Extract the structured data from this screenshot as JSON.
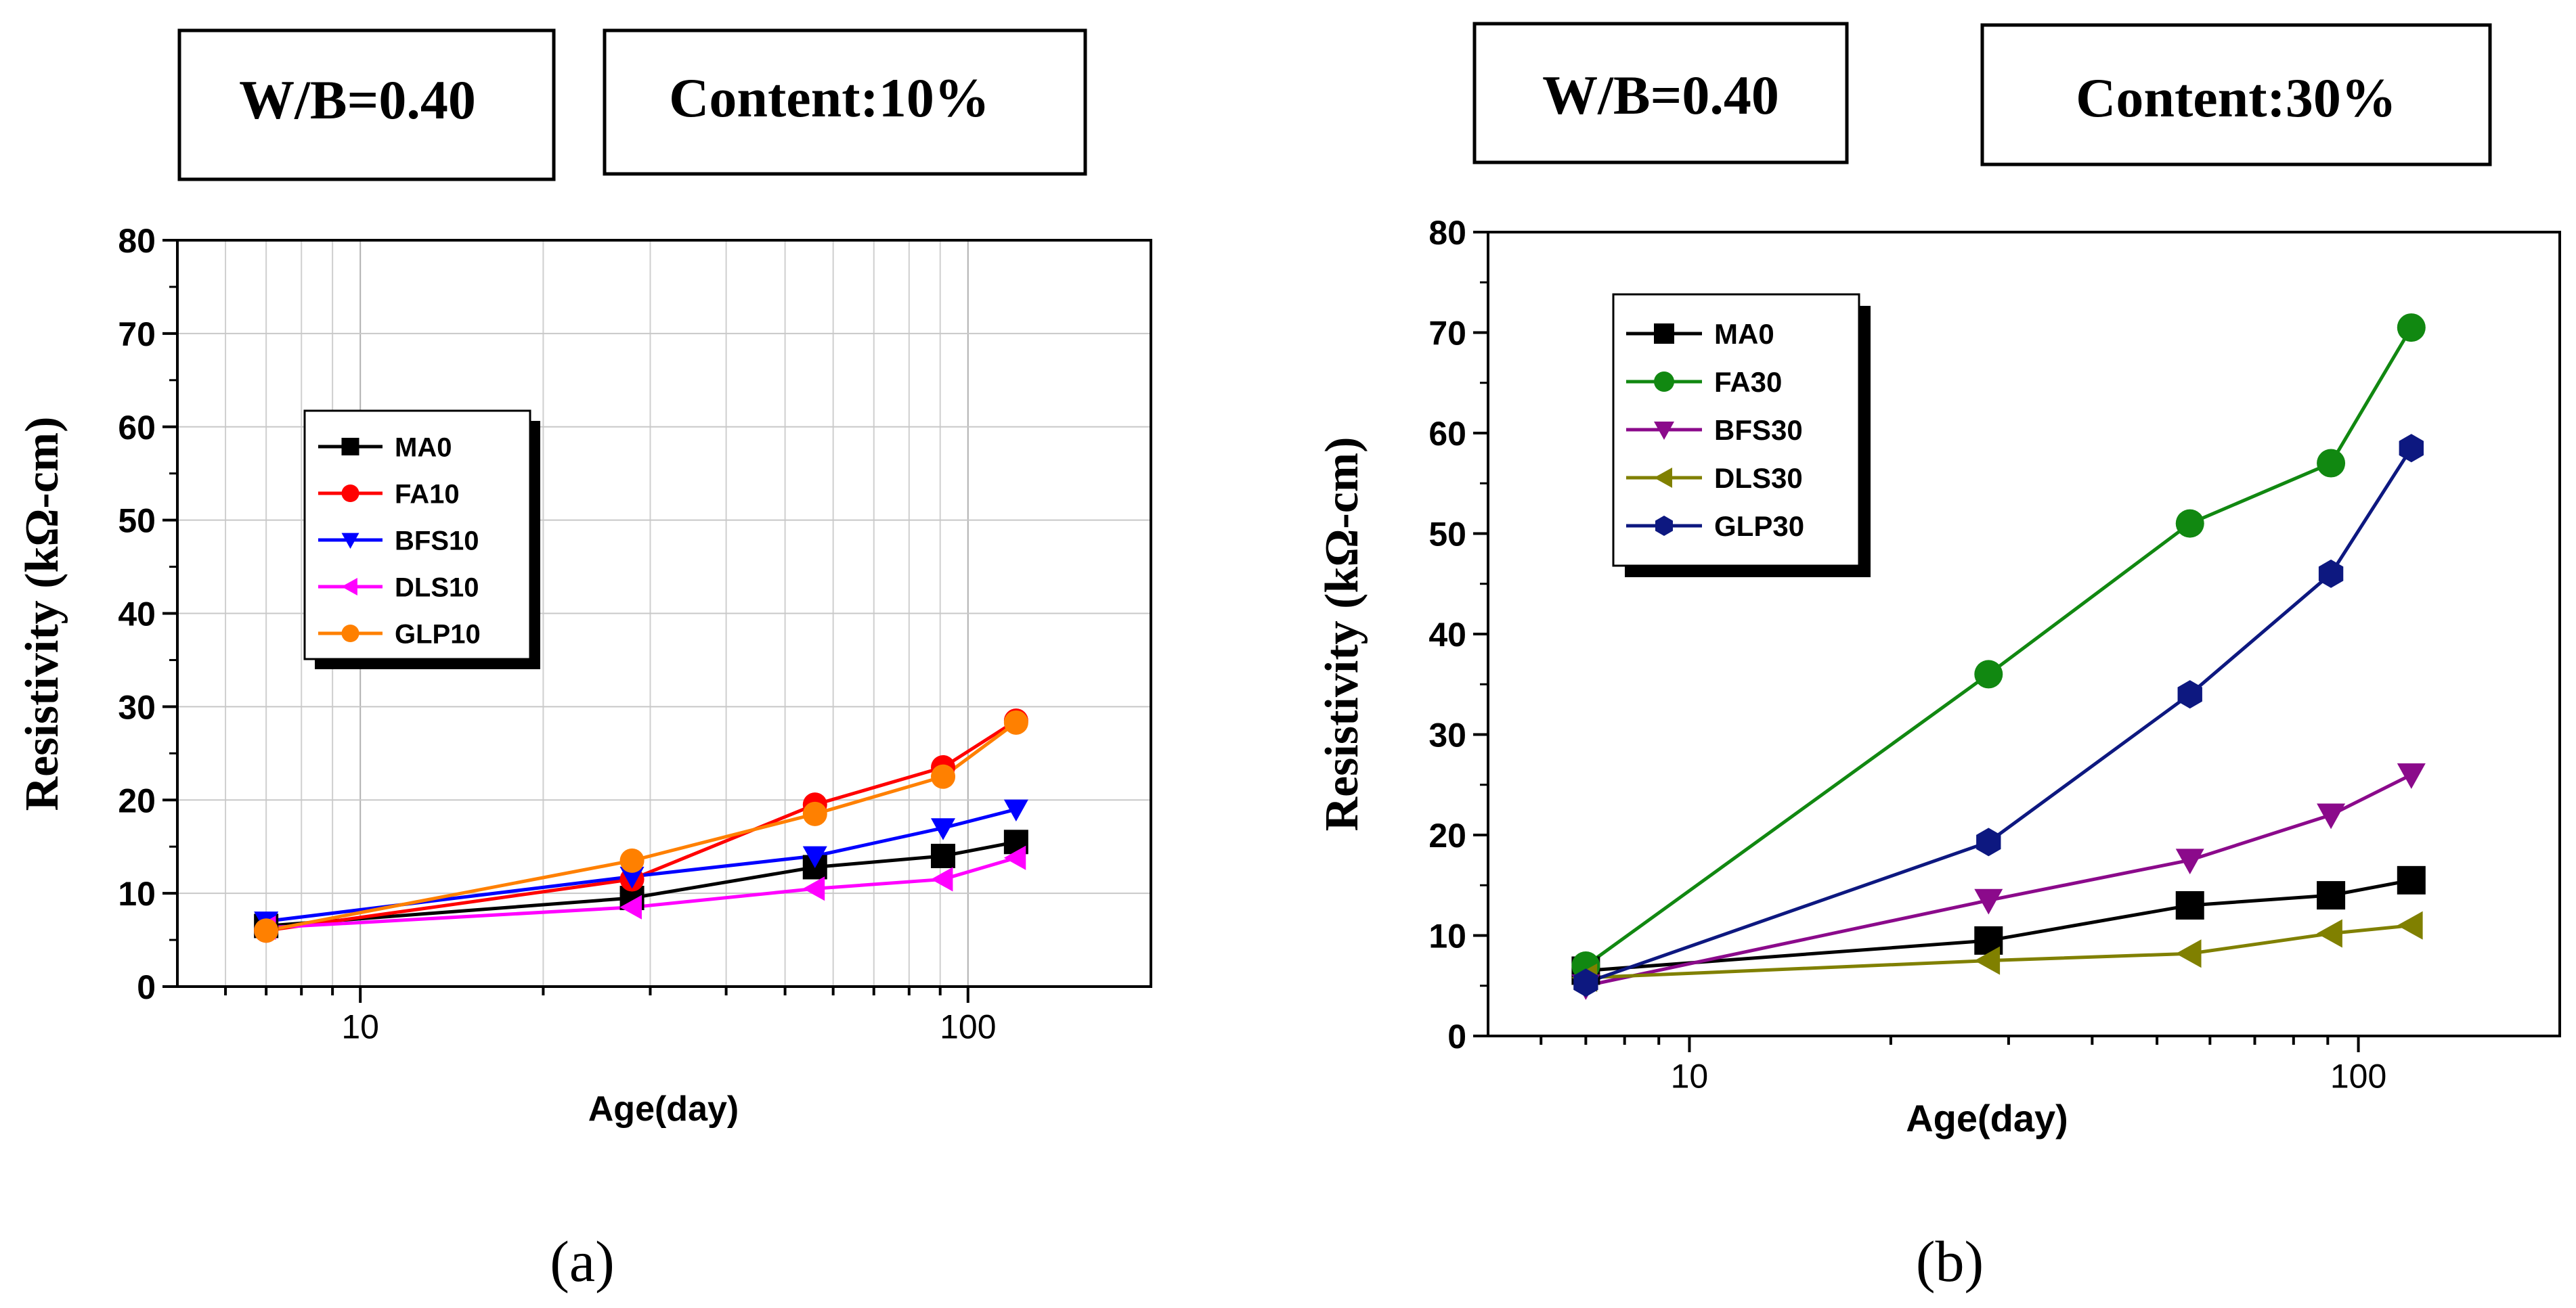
{
  "panels": [
    {
      "caption": "(a)",
      "boxes": [
        "W/B=0.40",
        "Content:10%"
      ],
      "chart_data": {
        "type": "line",
        "xscale": "log",
        "xlabel": "Age(day)",
        "ylabel": "Resistivity (kΩ-cm)",
        "xlim": [
          5,
          200
        ],
        "ylim": [
          0,
          80
        ],
        "x_ticks": [
          10,
          100
        ],
        "y_ticks": [
          0,
          10,
          20,
          30,
          40,
          50,
          60,
          70,
          80
        ],
        "grid": true,
        "legend_position": "upper-left",
        "x": [
          7,
          28,
          56,
          91,
          120
        ],
        "series": [
          {
            "name": "MA0",
            "color": "#000000",
            "marker": "square",
            "values": [
              6.5,
              9.5,
              12.8,
              14,
              15.5
            ]
          },
          {
            "name": "FA10",
            "color": "#ff0000",
            "marker": "circle",
            "values": [
              6,
              11.5,
              19.5,
              23.5,
              28.5
            ]
          },
          {
            "name": "BFS10",
            "color": "#0000ff",
            "marker": "triangle-down",
            "values": [
              7,
              11.8,
              14,
              17,
              19
            ]
          },
          {
            "name": "DLS10",
            "color": "#ff00ff",
            "marker": "triangle-left",
            "values": [
              6.3,
              8.5,
              10.5,
              11.5,
              13.8
            ]
          },
          {
            "name": "GLP10",
            "color": "#ff8000",
            "marker": "circle",
            "values": [
              6,
              13.5,
              18.5,
              22.5,
              28.3
            ]
          }
        ]
      }
    },
    {
      "caption": "(b)",
      "boxes": [
        "W/B=0.40",
        "Content:30%"
      ],
      "chart_data": {
        "type": "line",
        "xscale": "log",
        "xlabel": "Age(day)",
        "ylabel": "Resistivity (kΩ-cm)",
        "xlim": [
          5,
          200
        ],
        "ylim": [
          0,
          80
        ],
        "x_ticks": [
          10,
          100
        ],
        "y_ticks": [
          0,
          10,
          20,
          30,
          40,
          50,
          60,
          70,
          80
        ],
        "grid": false,
        "legend_position": "upper-left",
        "x": [
          7,
          28,
          56,
          91,
          120
        ],
        "series": [
          {
            "name": "MA0",
            "color": "#000000",
            "marker": "square",
            "values": [
              6.5,
              9.5,
              13,
              14,
              15.5
            ]
          },
          {
            "name": "FA30",
            "color": "#118811",
            "marker": "circle",
            "values": [
              7,
              36,
              51,
              57,
              70.5
            ]
          },
          {
            "name": "BFS30",
            "color": "#8b0a8b",
            "marker": "triangle-down",
            "values": [
              5,
              13.5,
              17.5,
              22,
              26
            ]
          },
          {
            "name": "DLS30",
            "color": "#808000",
            "marker": "triangle-left",
            "values": [
              5.8,
              7.5,
              8.2,
              10.2,
              11
            ]
          },
          {
            "name": "GLP30",
            "color": "#0d1880",
            "marker": "hexagon",
            "values": [
              5.3,
              19.3,
              34,
              46,
              58.5
            ]
          }
        ]
      }
    }
  ]
}
